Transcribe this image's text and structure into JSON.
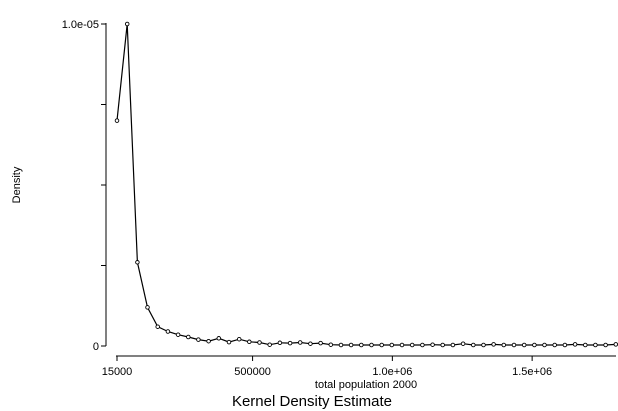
{
  "chart_data": {
    "type": "line",
    "title": "",
    "caption": "Kernel Density Estimate",
    "xlabel": "total population 2000",
    "ylabel": "Density",
    "xlim": [
      15000,
      1800000
    ],
    "ylim": [
      0,
      1e-05
    ],
    "x_ticks": [
      {
        "value": 15000,
        "label": "15000"
      },
      {
        "value": 500000,
        "label": "500000"
      },
      {
        "value": 1000000,
        "label": "1.0e+06"
      },
      {
        "value": 1500000,
        "label": "1.5e+06"
      }
    ],
    "y_ticks": [
      {
        "value": 0,
        "label": "0"
      },
      {
        "value": 1e-05,
        "label": "1.0e-05"
      }
    ],
    "grid": false,
    "legend": "none",
    "series": [
      {
        "markers": "hollow-circle",
        "x": [
          15000,
          51414,
          87828,
          124242,
          160656,
          197070,
          233484,
          269898,
          306312,
          342726,
          379140,
          415554,
          451968,
          488382,
          524796,
          561210,
          597624,
          634038,
          670452,
          706866,
          743280,
          779694,
          816108,
          852522,
          888936,
          925350,
          961764,
          998178,
          1034592,
          1071006,
          1107420,
          1143834,
          1180248,
          1216662,
          1253076,
          1289490,
          1325904,
          1362318,
          1398732,
          1435146,
          1471560,
          1507974,
          1544388,
          1580802,
          1617216,
          1653630,
          1690044,
          1726458,
          1762872,
          1799286
        ],
        "y": [
          7e-06,
          1e-05,
          2.6e-06,
          1.2e-06,
          6e-07,
          4.5e-07,
          3.5e-07,
          2.8e-07,
          2e-07,
          1.5e-07,
          2.4e-07,
          1.2e-07,
          2.1e-07,
          1.3e-07,
          1.1e-07,
          4e-08,
          1e-07,
          9e-08,
          1.1e-07,
          7e-08,
          9e-08,
          4e-08,
          3e-08,
          3e-08,
          3e-08,
          3e-08,
          3e-08,
          3e-08,
          3e-08,
          3e-08,
          3e-08,
          4e-08,
          3e-08,
          3e-08,
          7e-08,
          3e-08,
          3e-08,
          5e-08,
          3e-08,
          3e-08,
          3e-08,
          3e-08,
          3e-08,
          3e-08,
          3e-08,
          5e-08,
          3e-08,
          3e-08,
          3e-08,
          5e-08
        ]
      }
    ]
  },
  "style": {
    "line_color": "#000000",
    "marker_fill": "#ffffff",
    "axis_color": "#000000",
    "background": "#ffffff"
  }
}
